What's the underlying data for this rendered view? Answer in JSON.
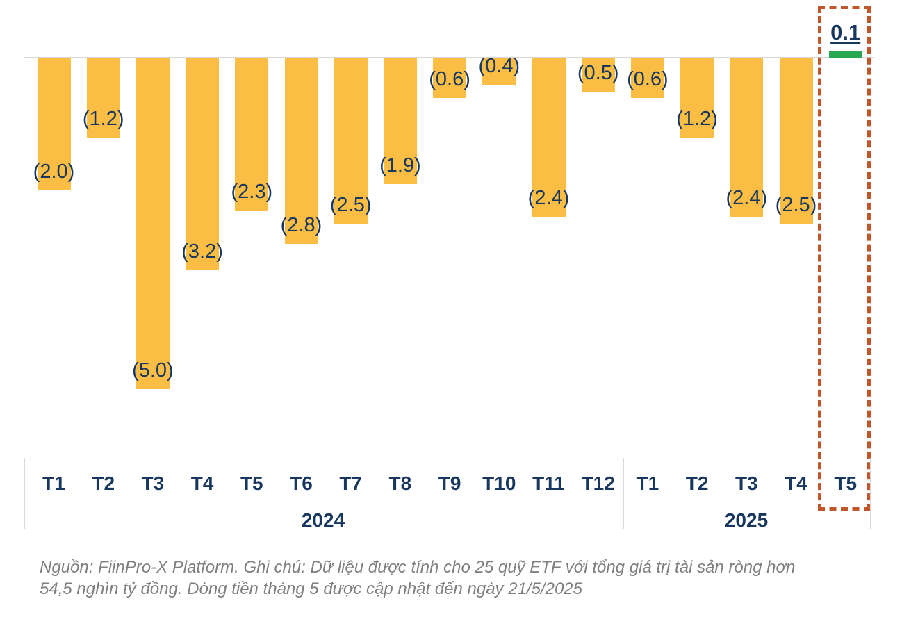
{
  "chart_data": {
    "type": "bar",
    "title": "",
    "xlabel": "",
    "ylabel": "",
    "unit_note": "values in nghin ty dong (trillion VND), negatives shown in parentheses",
    "categories": [
      "T1",
      "T2",
      "T3",
      "T4",
      "T5",
      "T6",
      "T7",
      "T8",
      "T9",
      "T10",
      "T11",
      "T12",
      "T1",
      "T2",
      "T3",
      "T4",
      "T5"
    ],
    "values": [
      -2.0,
      -1.2,
      -5.0,
      -3.2,
      -2.3,
      -2.8,
      -2.5,
      -1.9,
      -0.6,
      -0.4,
      -2.4,
      -0.5,
      -0.6,
      -1.2,
      -2.4,
      -2.5,
      0.1
    ],
    "data_labels": [
      "(2.0)",
      "(1.2)",
      "(5.0)",
      "(3.2)",
      "(2.3)",
      "(2.8)",
      "(2.5)",
      "(1.9)",
      "(0.6)",
      "(0.4)",
      "(2.4)",
      "(0.5)",
      "(0.6)",
      "(1.2)",
      "(2.4)",
      "(2.5)",
      "0.1"
    ],
    "groups": [
      {
        "label": "2024",
        "count": 12
      },
      {
        "label": "2025",
        "count": 5
      }
    ],
    "highlight_index": 16,
    "ylim": [
      -5.5,
      0.5
    ],
    "grid": false,
    "legend": "none",
    "baseline_value": 0
  },
  "colors": {
    "negative_bar": "#FBBD43",
    "positive_bar": "#28A853",
    "label_text": "#17375E",
    "axis_line": "#D9D9D9",
    "highlight_border": "#C0572B",
    "footer_text": "#7F7F7F"
  },
  "footer": {
    "line1": "Nguồn: FiinPro-X Platform. Ghi chú: Dữ liệu được tính cho 25 quỹ ETF với tổng giá trị tài sản ròng hơn",
    "line2": "54,5 nghìn tỷ đồng. Dòng tiền tháng 5 được cập nhật đến ngày 21/5/2025"
  }
}
